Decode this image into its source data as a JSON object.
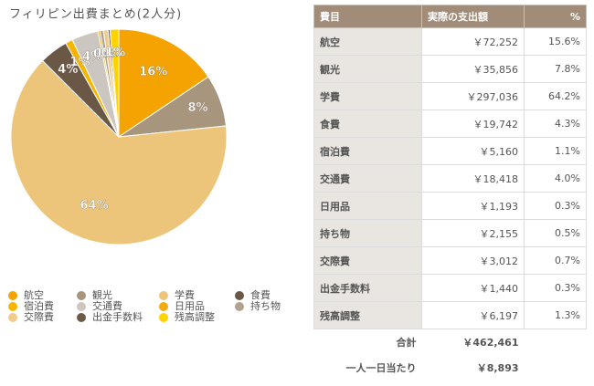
{
  "chart_data": {
    "type": "pie",
    "title": "フィリピン出費まとめ(2人分)",
    "categories": [
      "航空",
      "観光",
      "学費",
      "食費",
      "宿泊費",
      "交通費",
      "日用品",
      "持ち物",
      "交際費",
      "出金手数料",
      "残高調整"
    ],
    "values": [
      15.6,
      7.8,
      64.2,
      4.3,
      1.1,
      4.0,
      0.3,
      0.5,
      0.7,
      0.3,
      1.3
    ],
    "value_labels": [
      "16%",
      "8%",
      "64%",
      "4%",
      "1%",
      "4%",
      "0%",
      "1%",
      "1%",
      "0%",
      "1%"
    ],
    "colors": [
      "#f5a300",
      "#a8957d",
      "#ecc57b",
      "#6b5746",
      "#f7b500",
      "#cbc6bf",
      "#f2aa10",
      "#b3a18f",
      "#f0cb8e",
      "#6e5a48",
      "#ffd200"
    ]
  },
  "table": {
    "header": [
      "費目",
      "実際の支出額",
      "%"
    ],
    "rows": [
      [
        "航空",
        "￥72,252",
        "15.6%"
      ],
      [
        "観光",
        "￥35,856",
        "7.8%"
      ],
      [
        "学費",
        "￥297,036",
        "64.2%"
      ],
      [
        "食費",
        "￥19,742",
        "4.3%"
      ],
      [
        "宿泊費",
        "￥5,160",
        "1.1%"
      ],
      [
        "交通費",
        "￥18,418",
        "4.0%"
      ],
      [
        "日用品",
        "￥1,193",
        "0.3%"
      ],
      [
        "持ち物",
        "￥2,155",
        "0.5%"
      ],
      [
        "交際費",
        "￥3,012",
        "0.7%"
      ],
      [
        "出金手数料",
        "￥1,440",
        "0.3%"
      ],
      [
        "残高調整",
        "￥6,197",
        "1.3%"
      ]
    ],
    "footer": [
      [
        "合計",
        "￥462,461"
      ],
      [
        "一人一日当たり",
        "￥8,893"
      ]
    ]
  }
}
